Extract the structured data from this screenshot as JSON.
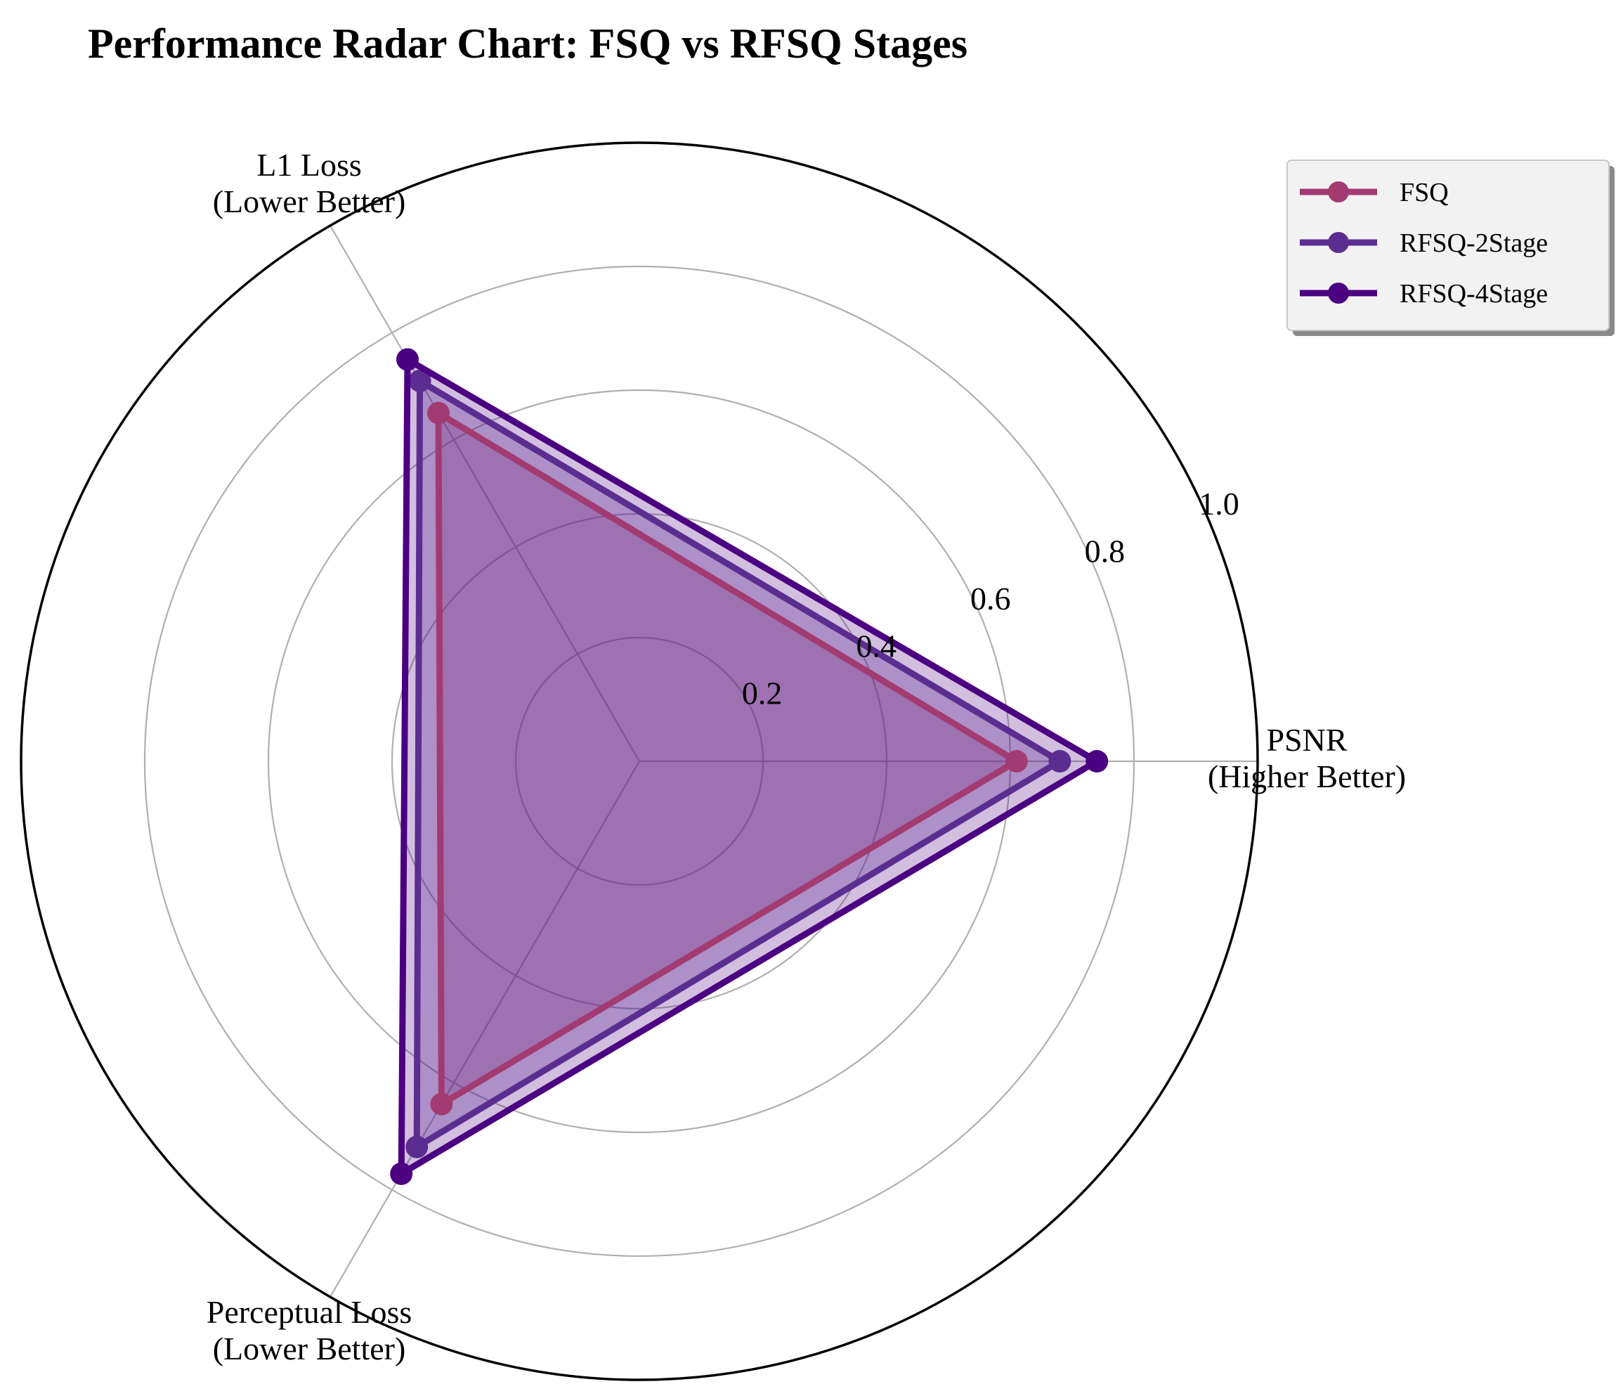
{
  "chart_data": {
    "type": "radar",
    "title": "Performance Radar Chart: FSQ vs RFSQ Stages",
    "axes": [
      "PSNR\n(Higher Better)",
      "L1 Loss\n(Lower Better)",
      "Perceptual Loss\n(Lower Better)"
    ],
    "rlim": [
      0,
      1.0
    ],
    "r_ticks": [
      "0.2",
      "0.4",
      "0.6",
      "0.8",
      "1.0"
    ],
    "r_tick_values": [
      0.2,
      0.4,
      0.6,
      0.8,
      1.0
    ],
    "grid": true,
    "legend_position": "top-right",
    "series": [
      {
        "name": "FSQ",
        "values": [
          0.61,
          0.65,
          0.64
        ],
        "color": "#a23b72"
      },
      {
        "name": "RFSQ-2Stage",
        "values": [
          0.68,
          0.71,
          0.72
        ],
        "color": "#5c2d91"
      },
      {
        "name": "RFSQ-4Stage",
        "values": [
          0.74,
          0.75,
          0.77
        ],
        "color": "#4b0082"
      }
    ]
  }
}
